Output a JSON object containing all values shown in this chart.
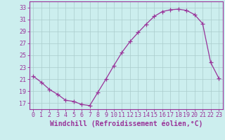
{
  "x": [
    0,
    1,
    2,
    3,
    4,
    5,
    6,
    7,
    8,
    9,
    10,
    11,
    12,
    13,
    14,
    15,
    16,
    17,
    18,
    19,
    20,
    21,
    22,
    23
  ],
  "y": [
    21.5,
    20.5,
    19.3,
    18.5,
    17.5,
    17.3,
    16.8,
    16.6,
    18.8,
    21.0,
    23.3,
    25.5,
    27.3,
    28.8,
    30.2,
    31.5,
    32.3,
    32.6,
    32.7,
    32.5,
    31.8,
    30.3,
    23.8,
    21.2
  ],
  "line_color": "#993399",
  "marker": "+",
  "marker_size": 4,
  "bg_color": "#cceeee",
  "grid_color": "#aacccc",
  "xlabel": "Windchill (Refroidissement éolien,°C)",
  "ylabel_ticks": [
    17,
    19,
    21,
    23,
    25,
    27,
    29,
    31,
    33
  ],
  "xlim": [
    -0.5,
    23.5
  ],
  "ylim": [
    16.0,
    34.0
  ],
  "xticks": [
    0,
    1,
    2,
    3,
    4,
    5,
    6,
    7,
    8,
    9,
    10,
    11,
    12,
    13,
    14,
    15,
    16,
    17,
    18,
    19,
    20,
    21,
    22,
    23
  ],
  "tick_label_color": "#993399",
  "axis_color": "#993399",
  "label_fontsize": 7,
  "tick_fontsize": 6
}
